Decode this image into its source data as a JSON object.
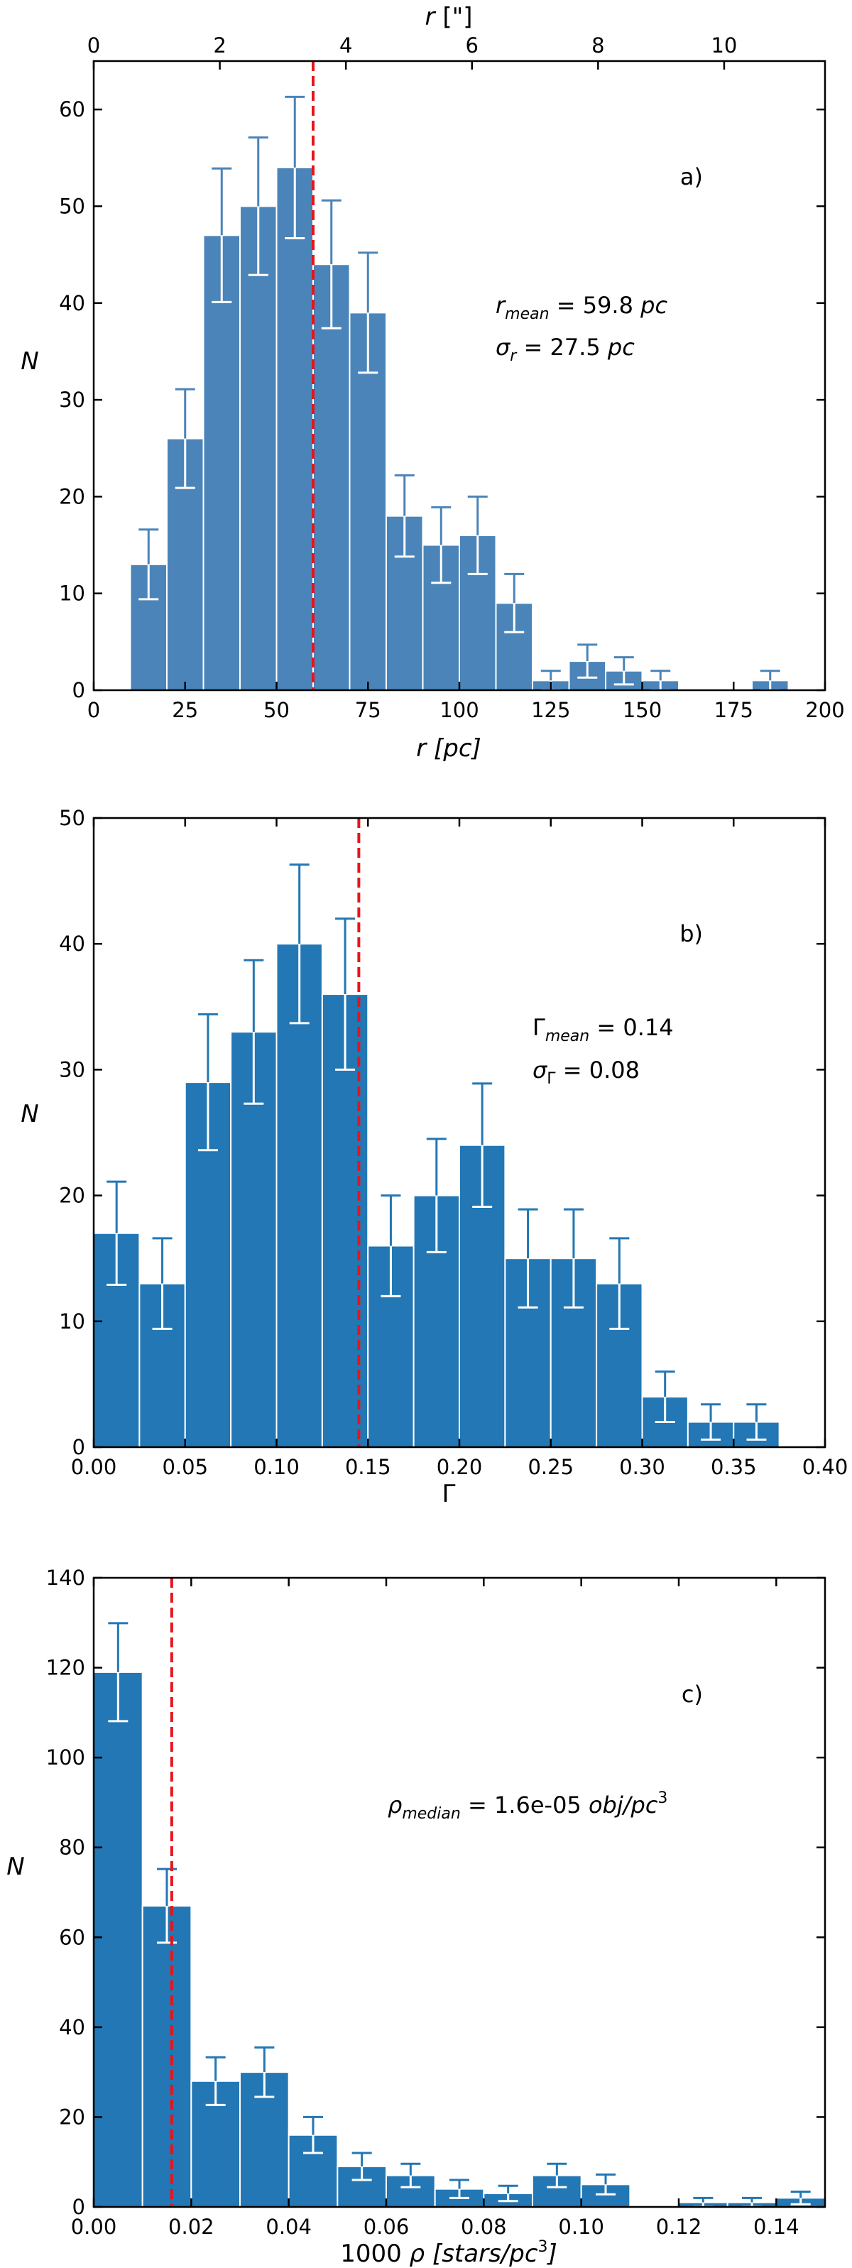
{
  "chart_data": [
    {
      "type": "bar",
      "panel_label": "a)",
      "xlabel_var": "r",
      "xlabel_unit": "[pc]",
      "ylabel": "N",
      "top_axis_var": "r",
      "top_axis_unit": "[\"]",
      "xlim": [
        0,
        200
      ],
      "ylim": [
        0,
        65
      ],
      "top_xlim": [
        0,
        11.6
      ],
      "x_ticks": [
        "0",
        "25",
        "50",
        "75",
        "100",
        "125",
        "150",
        "175",
        "200"
      ],
      "y_ticks": [
        "0",
        "10",
        "20",
        "30",
        "40",
        "50",
        "60"
      ],
      "top_ticks": [
        "0",
        "2",
        "4",
        "6",
        "8",
        "10"
      ],
      "bin_edges": [
        10,
        20,
        30,
        40,
        50,
        60,
        70,
        80,
        90,
        100,
        110,
        120,
        130,
        140,
        150,
        160,
        170,
        180,
        190
      ],
      "values": [
        13,
        26,
        47,
        50,
        54,
        44,
        39,
        18,
        15,
        16,
        9,
        1,
        3,
        2,
        1,
        0,
        0,
        1
      ],
      "errors": [
        3.6,
        5.1,
        6.9,
        7.1,
        7.3,
        6.6,
        6.2,
        4.2,
        3.9,
        4.0,
        3.0,
        1.0,
        1.7,
        1.4,
        1.0,
        0,
        0,
        1.0
      ],
      "mean_line": 60,
      "annotation": {
        "line1_var": "r",
        "line1_sub": "mean",
        "line1_value": " = 59.8 ",
        "line1_unit": "pc",
        "line2_var": "σ",
        "line2_sub": "r",
        "line2_value": " = 27.5 ",
        "line2_unit": "pc"
      },
      "bar_color": "#4b84b8",
      "mean_line_color": "#e8141b"
    },
    {
      "type": "bar",
      "panel_label": "b)",
      "xlabel": "Γ",
      "ylabel": "N",
      "xlim": [
        0.0,
        0.4
      ],
      "ylim": [
        0,
        50
      ],
      "x_ticks": [
        "0.00",
        "0.05",
        "0.10",
        "0.15",
        "0.20",
        "0.25",
        "0.30",
        "0.35",
        "0.40"
      ],
      "y_ticks": [
        "0",
        "10",
        "20",
        "30",
        "40",
        "50"
      ],
      "bin_edges": [
        0.0,
        0.025,
        0.05,
        0.075,
        0.1,
        0.125,
        0.15,
        0.175,
        0.2,
        0.225,
        0.25,
        0.275,
        0.3,
        0.325,
        0.35,
        0.375
      ],
      "values": [
        17,
        13,
        29,
        33,
        40,
        36,
        16,
        20,
        24,
        15,
        15,
        13,
        4,
        2,
        2
      ],
      "errors": [
        4.1,
        3.6,
        5.4,
        5.7,
        6.3,
        6.0,
        4.0,
        4.5,
        4.9,
        3.9,
        3.9,
        3.6,
        2.0,
        1.4,
        1.4
      ],
      "mean_line": 0.145,
      "annotation": {
        "line1_var": "Γ",
        "line1_sub": "mean",
        "line1_value": " = 0.14",
        "line2_var": "σ",
        "line2_sub": "Γ",
        "line2_value": " = 0.08"
      },
      "bar_color": "#2277b4",
      "mean_line_color": "#e8141b"
    },
    {
      "type": "bar",
      "panel_label": "c)",
      "xlabel_prefix": "1000 ",
      "xlabel_var": "ρ",
      "xlabel_unit": "[stars/pc",
      "xlabel_sup": "3",
      "xlabel_close": "]",
      "ylabel": "N",
      "xlim": [
        0.0,
        0.15
      ],
      "ylim": [
        0,
        140
      ],
      "x_ticks": [
        "0.00",
        "0.02",
        "0.04",
        "0.06",
        "0.08",
        "0.10",
        "0.12",
        "0.14"
      ],
      "y_ticks": [
        "0",
        "20",
        "40",
        "60",
        "80",
        "100",
        "120",
        "140"
      ],
      "bin_edges": [
        0.0,
        0.01,
        0.02,
        0.03,
        0.04,
        0.05,
        0.06,
        0.07,
        0.08,
        0.09,
        0.1,
        0.11,
        0.12,
        0.13,
        0.14,
        0.15
      ],
      "values": [
        119,
        67,
        28,
        30,
        16,
        9,
        7,
        4,
        3,
        7,
        5,
        0,
        1,
        1,
        2
      ],
      "errors": [
        10.9,
        8.2,
        5.3,
        5.5,
        4.0,
        3.0,
        2.6,
        2.0,
        1.7,
        2.6,
        2.2,
        0,
        1.0,
        1.0,
        1.4
      ],
      "mean_line": 0.016,
      "annotation": {
        "line1_var": "ρ",
        "line1_sub": "median",
        "line1_value": " = 1.6e-05 ",
        "line1_unit": "obj/pc",
        "line1_sup": "3"
      },
      "bar_color": "#2277b4",
      "mean_line_color": "#e8141b"
    }
  ]
}
